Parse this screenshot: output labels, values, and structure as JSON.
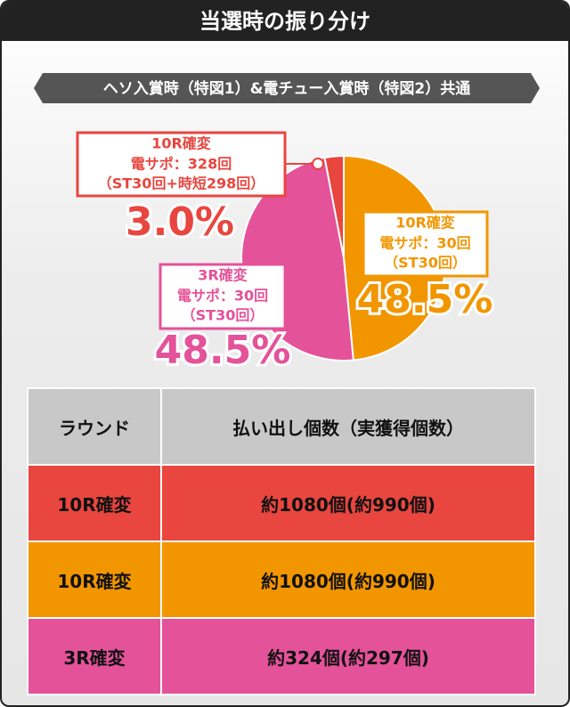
{
  "header": {
    "title": "当選時の振り分け",
    "subtitle": "ヘソ入賞時（特図1）&電チュー入賞時（特図2）共通"
  },
  "chart_data": {
    "type": "pie",
    "categories": [
      "10R確変",
      "10R確変",
      "3R確変"
    ],
    "details": [
      [
        "電サポ：328回",
        "（ST30回+時短298回）"
      ],
      [
        "電サポ：30回",
        "（ST30回）"
      ],
      [
        "電サポ：30回",
        "（ST30回）"
      ]
    ],
    "values": [
      3.0,
      48.5,
      48.5
    ],
    "value_labels": [
      "3.0%",
      "48.5%",
      "48.5%"
    ],
    "colors": [
      "#e8463f",
      "#f29600",
      "#e4529a"
    ]
  },
  "table": {
    "header": [
      "ラウンド",
      "払い出し個数（実獲得個数）"
    ],
    "rows": [
      [
        "10R確変",
        "約1080個(約990個)"
      ],
      [
        "10R確変",
        "約1080個(約990個)"
      ],
      [
        "3R確変",
        "約324個(約297個)"
      ]
    ]
  }
}
